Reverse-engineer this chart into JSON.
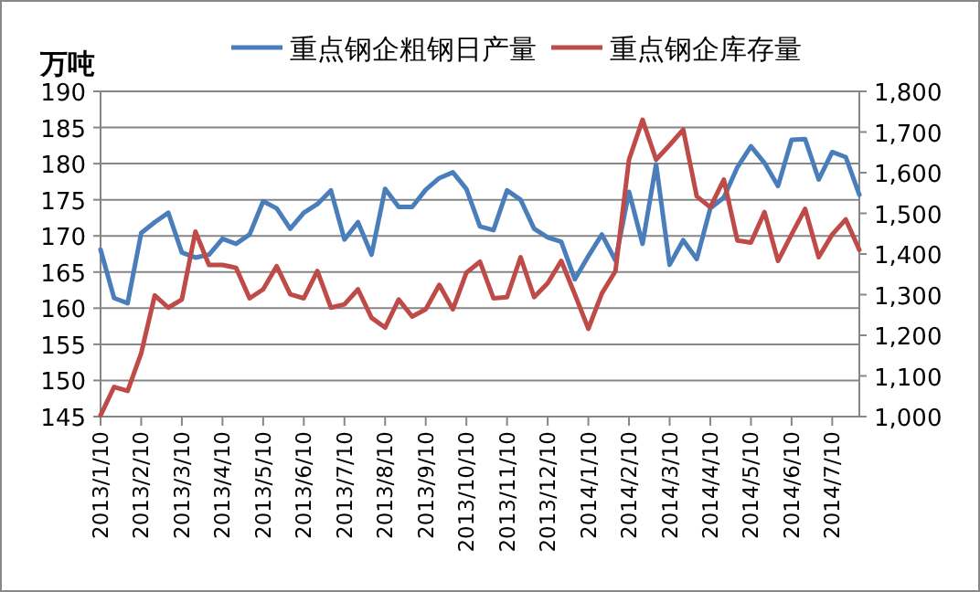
{
  "chart_data": {
    "type": "line",
    "ylabel": "万吨",
    "categories": [
      "2013/1/10",
      null,
      null,
      "2013/2/10",
      null,
      null,
      "2013/3/10",
      null,
      null,
      "2013/4/10",
      null,
      null,
      "2013/5/10",
      null,
      null,
      "2013/6/10",
      null,
      null,
      "2013/7/10",
      null,
      null,
      "2013/8/10",
      null,
      null,
      "2013/9/10",
      null,
      null,
      "2013/10/10",
      null,
      null,
      "2013/11/10",
      null,
      null,
      "2013/12/10",
      null,
      null,
      "2014/1/10",
      null,
      null,
      "2014/2/10",
      null,
      null,
      "2014/3/10",
      null,
      null,
      "2014/4/10",
      null,
      null,
      "2014/5/10",
      null,
      null,
      "2014/6/10",
      null,
      null,
      "2014/7/10",
      null,
      null
    ],
    "series": [
      {
        "name": "重点钢企粗钢日产量",
        "color": "#4a7ebb",
        "values": [
          168.1,
          161.4,
          160.7,
          170.4,
          171.9,
          173.2,
          167.7,
          167.0,
          167.4,
          169.6,
          168.9,
          170.2,
          174.8,
          173.8,
          171.0,
          173.2,
          174.4,
          176.3,
          169.5,
          171.9,
          167.4,
          176.5,
          174.0,
          174.0,
          176.4,
          178.0,
          178.8,
          176.5,
          171.3,
          170.8,
          176.3,
          175.0,
          171.0,
          169.8,
          169.2,
          164.0,
          167.2,
          170.2,
          166.6,
          176.1,
          168.9,
          179.9,
          166.0,
          169.4,
          166.8,
          173.8,
          175.3,
          179.5,
          182.4,
          180.1,
          176.9,
          183.3,
          183.4,
          177.8,
          181.6,
          180.9,
          175.7
        ]
      },
      {
        "name": "重点钢企库存量",
        "color": "#be4b48",
        "axis": "y2",
        "values": [
          1003,
          1073,
          1063,
          1156,
          1298,
          1268,
          1288,
          1455,
          1373,
          1373,
          1366,
          1291,
          1313,
          1370,
          1301,
          1291,
          1358,
          1268,
          1276,
          1313,
          1243,
          1219,
          1288,
          1246,
          1264,
          1324,
          1264,
          1354,
          1381,
          1291,
          1294,
          1392,
          1294,
          1328,
          1383,
          1301,
          1216,
          1303,
          1358,
          1632,
          1730,
          1632,
          1668,
          1706,
          1542,
          1515,
          1583,
          1433,
          1428,
          1503,
          1383,
          1448,
          1511,
          1392,
          1448,
          1485,
          1410
        ]
      }
    ],
    "ylim": [
      145,
      190
    ],
    "yticks": [
      145,
      150,
      155,
      160,
      165,
      170,
      175,
      180,
      185,
      190
    ],
    "y2lim": [
      1000,
      1800
    ],
    "y2ticks": [
      {
        "value": 1000,
        "label": "1,000"
      },
      {
        "value": 1100,
        "label": "1,100"
      },
      {
        "value": 1200,
        "label": "1,200"
      },
      {
        "value": 1300,
        "label": "1,300"
      },
      {
        "value": 1400,
        "label": "1,400"
      },
      {
        "value": 1500,
        "label": "1,500"
      },
      {
        "value": 1600,
        "label": "1,600"
      },
      {
        "value": 1700,
        "label": "1,700"
      },
      {
        "value": 1800,
        "label": "1,800"
      }
    ],
    "grid": "y",
    "legend": "top"
  }
}
